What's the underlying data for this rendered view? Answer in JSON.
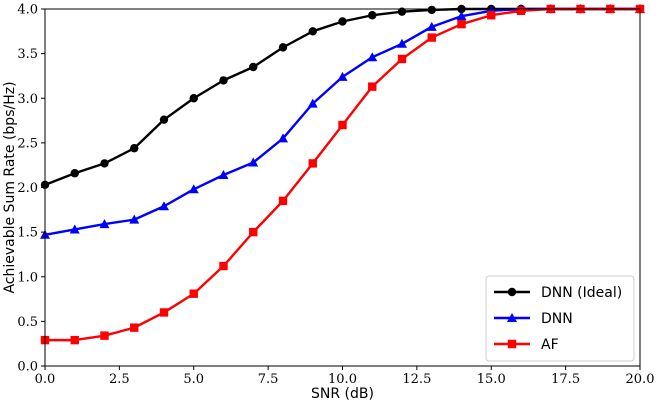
{
  "chart_data": {
    "type": "line",
    "xlabel": "SNR (dB)",
    "ylabel": "Achievable Sum Rate (bps/Hz)",
    "xlim": [
      0,
      20
    ],
    "ylim": [
      0,
      4
    ],
    "xticks": [
      "0.0",
      "2.5",
      "5.0",
      "7.5",
      "10.0",
      "12.5",
      "15.0",
      "17.5",
      "20.0"
    ],
    "yticks": [
      "0.0",
      "0.5",
      "1.0",
      "1.5",
      "2.0",
      "2.5",
      "3.0",
      "3.5",
      "4.0"
    ],
    "grid": false,
    "legend_position": "bottom-right",
    "x": [
      0,
      1,
      2,
      3,
      4,
      5,
      6,
      7,
      8,
      9,
      10,
      11,
      12,
      13,
      14,
      15,
      16,
      17,
      18,
      19,
      20
    ],
    "series": [
      {
        "name": "DNN (Ideal)",
        "color": "#000000",
        "marker": "circle",
        "values": [
          2.03,
          2.16,
          2.27,
          2.44,
          2.76,
          3.0,
          3.2,
          3.35,
          3.57,
          3.75,
          3.86,
          3.93,
          3.97,
          3.99,
          4.0,
          4.0,
          4.0,
          4.0,
          4.0,
          4.0,
          4.0
        ]
      },
      {
        "name": "DNN",
        "color": "#0000ff",
        "marker": "triangle",
        "values": [
          1.47,
          1.53,
          1.59,
          1.64,
          1.79,
          1.98,
          2.14,
          2.28,
          2.55,
          2.94,
          3.24,
          3.46,
          3.61,
          3.8,
          3.92,
          3.98,
          4.0,
          4.0,
          4.0,
          4.0,
          4.0
        ]
      },
      {
        "name": "AF",
        "color": "#ff0000",
        "marker": "square",
        "values": [
          0.29,
          0.29,
          0.34,
          0.43,
          0.6,
          0.81,
          1.12,
          1.5,
          1.85,
          2.27,
          2.7,
          3.13,
          3.44,
          3.68,
          3.83,
          3.93,
          3.98,
          4.0,
          4.0,
          4.0,
          4.0
        ]
      }
    ]
  }
}
